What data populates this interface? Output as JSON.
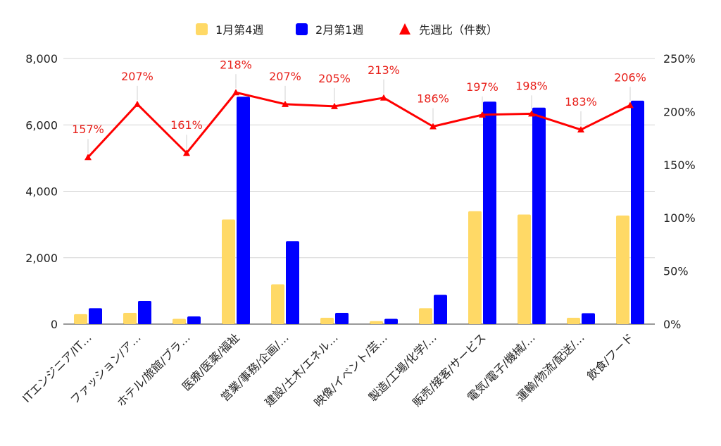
{
  "chart_data": {
    "type": "bar",
    "categories": [
      "ITエンジニア/IT…",
      "ファッション/ア…",
      "ホテル/旅館/ブラ…",
      "医療/医薬/福祉",
      "営業/事務/企画/…",
      "建設/土木/エネル…",
      "映像/イベント/芸…",
      "製造/工場/化学/…",
      "販売/接客/サービス",
      "電気/電子/機械/…",
      "運輸/物流/配送/…",
      "飲食/フード"
    ],
    "series": [
      {
        "name": "1月第4週",
        "type": "bar",
        "axis": "left",
        "color": "#ffd966",
        "values": [
          300,
          340,
          160,
          3150,
          1200,
          190,
          90,
          480,
          3400,
          3300,
          190,
          3270
        ]
      },
      {
        "name": "2月第1週",
        "type": "bar",
        "axis": "left",
        "color": "#0000ff",
        "values": [
          480,
          700,
          230,
          6850,
          2500,
          340,
          160,
          880,
          6700,
          6520,
          330,
          6730
        ]
      },
      {
        "name": "先週比（件数）",
        "type": "line",
        "axis": "right",
        "color": "#ff0000",
        "values": [
          157,
          207,
          161,
          218,
          207,
          205,
          213,
          186,
          197,
          198,
          183,
          206
        ],
        "labels": [
          "157%",
          "207%",
          "161%",
          "218%",
          "207%",
          "205%",
          "213%",
          "186%",
          "197%",
          "198%",
          "183%",
          "206%"
        ]
      }
    ],
    "y_left": {
      "min": 0,
      "max": 8000,
      "ticks": [
        0,
        2000,
        4000,
        6000,
        8000
      ],
      "tick_labels": [
        "0",
        "2,000",
        "4,000",
        "6,000",
        "8,000"
      ]
    },
    "y_right": {
      "min": 0,
      "max": 250,
      "ticks": [
        0,
        50,
        100,
        150,
        200,
        250
      ],
      "tick_labels": [
        "0%",
        "50%",
        "100%",
        "150%",
        "200%",
        "250%"
      ]
    },
    "title": "",
    "xlabel": "",
    "ylabel": "",
    "grid": true,
    "legend": "top-center"
  }
}
